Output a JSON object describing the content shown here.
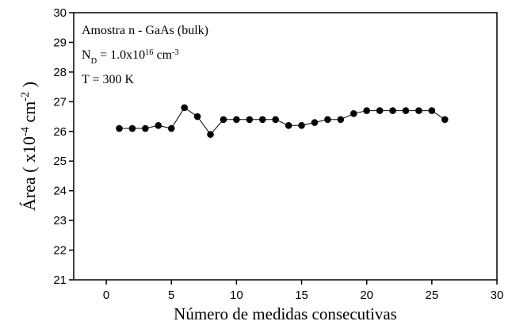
{
  "chart_data": {
    "type": "line",
    "xlabel": "Número de medidas consecutivas",
    "ylabel": [
      {
        "text": "Área ( x10"
      },
      {
        "text": "-4",
        "super": true
      },
      {
        "text": " cm"
      },
      {
        "text": "-2",
        "super": true
      },
      {
        "text": " )"
      }
    ],
    "annotations": [
      [
        {
          "text": "Amostra n - GaAs (bulk)"
        }
      ],
      [
        {
          "text": "N"
        },
        {
          "text": "D",
          "sub": true
        },
        {
          "text": " = 1.0x10"
        },
        {
          "text": "16",
          "super": true
        },
        {
          "text": " cm"
        },
        {
          "text": "-3",
          "super": true
        }
      ],
      [
        {
          "text": "T = 300 K"
        }
      ]
    ],
    "x": [
      1,
      2,
      3,
      4,
      5,
      6,
      7,
      8,
      9,
      10,
      11,
      12,
      13,
      14,
      15,
      16,
      17,
      18,
      19,
      20,
      21,
      22,
      23,
      24,
      25,
      26
    ],
    "series": [
      {
        "color": "#000000",
        "values": [
          26.1,
          26.1,
          26.1,
          26.2,
          26.1,
          26.8,
          26.5,
          25.9,
          26.4,
          26.4,
          26.4,
          26.4,
          26.4,
          26.2,
          26.2,
          26.3,
          26.4,
          26.4,
          26.6,
          26.7,
          26.7,
          26.7,
          26.7,
          26.7,
          26.7,
          26.4
        ]
      }
    ],
    "xlim": [
      -2.5,
      30
    ],
    "xticks": [
      0,
      5,
      10,
      15,
      20,
      25,
      30
    ],
    "ylim": [
      21,
      30
    ],
    "yticks": [
      21,
      22,
      23,
      24,
      25,
      26,
      27,
      28,
      29,
      30
    ]
  }
}
